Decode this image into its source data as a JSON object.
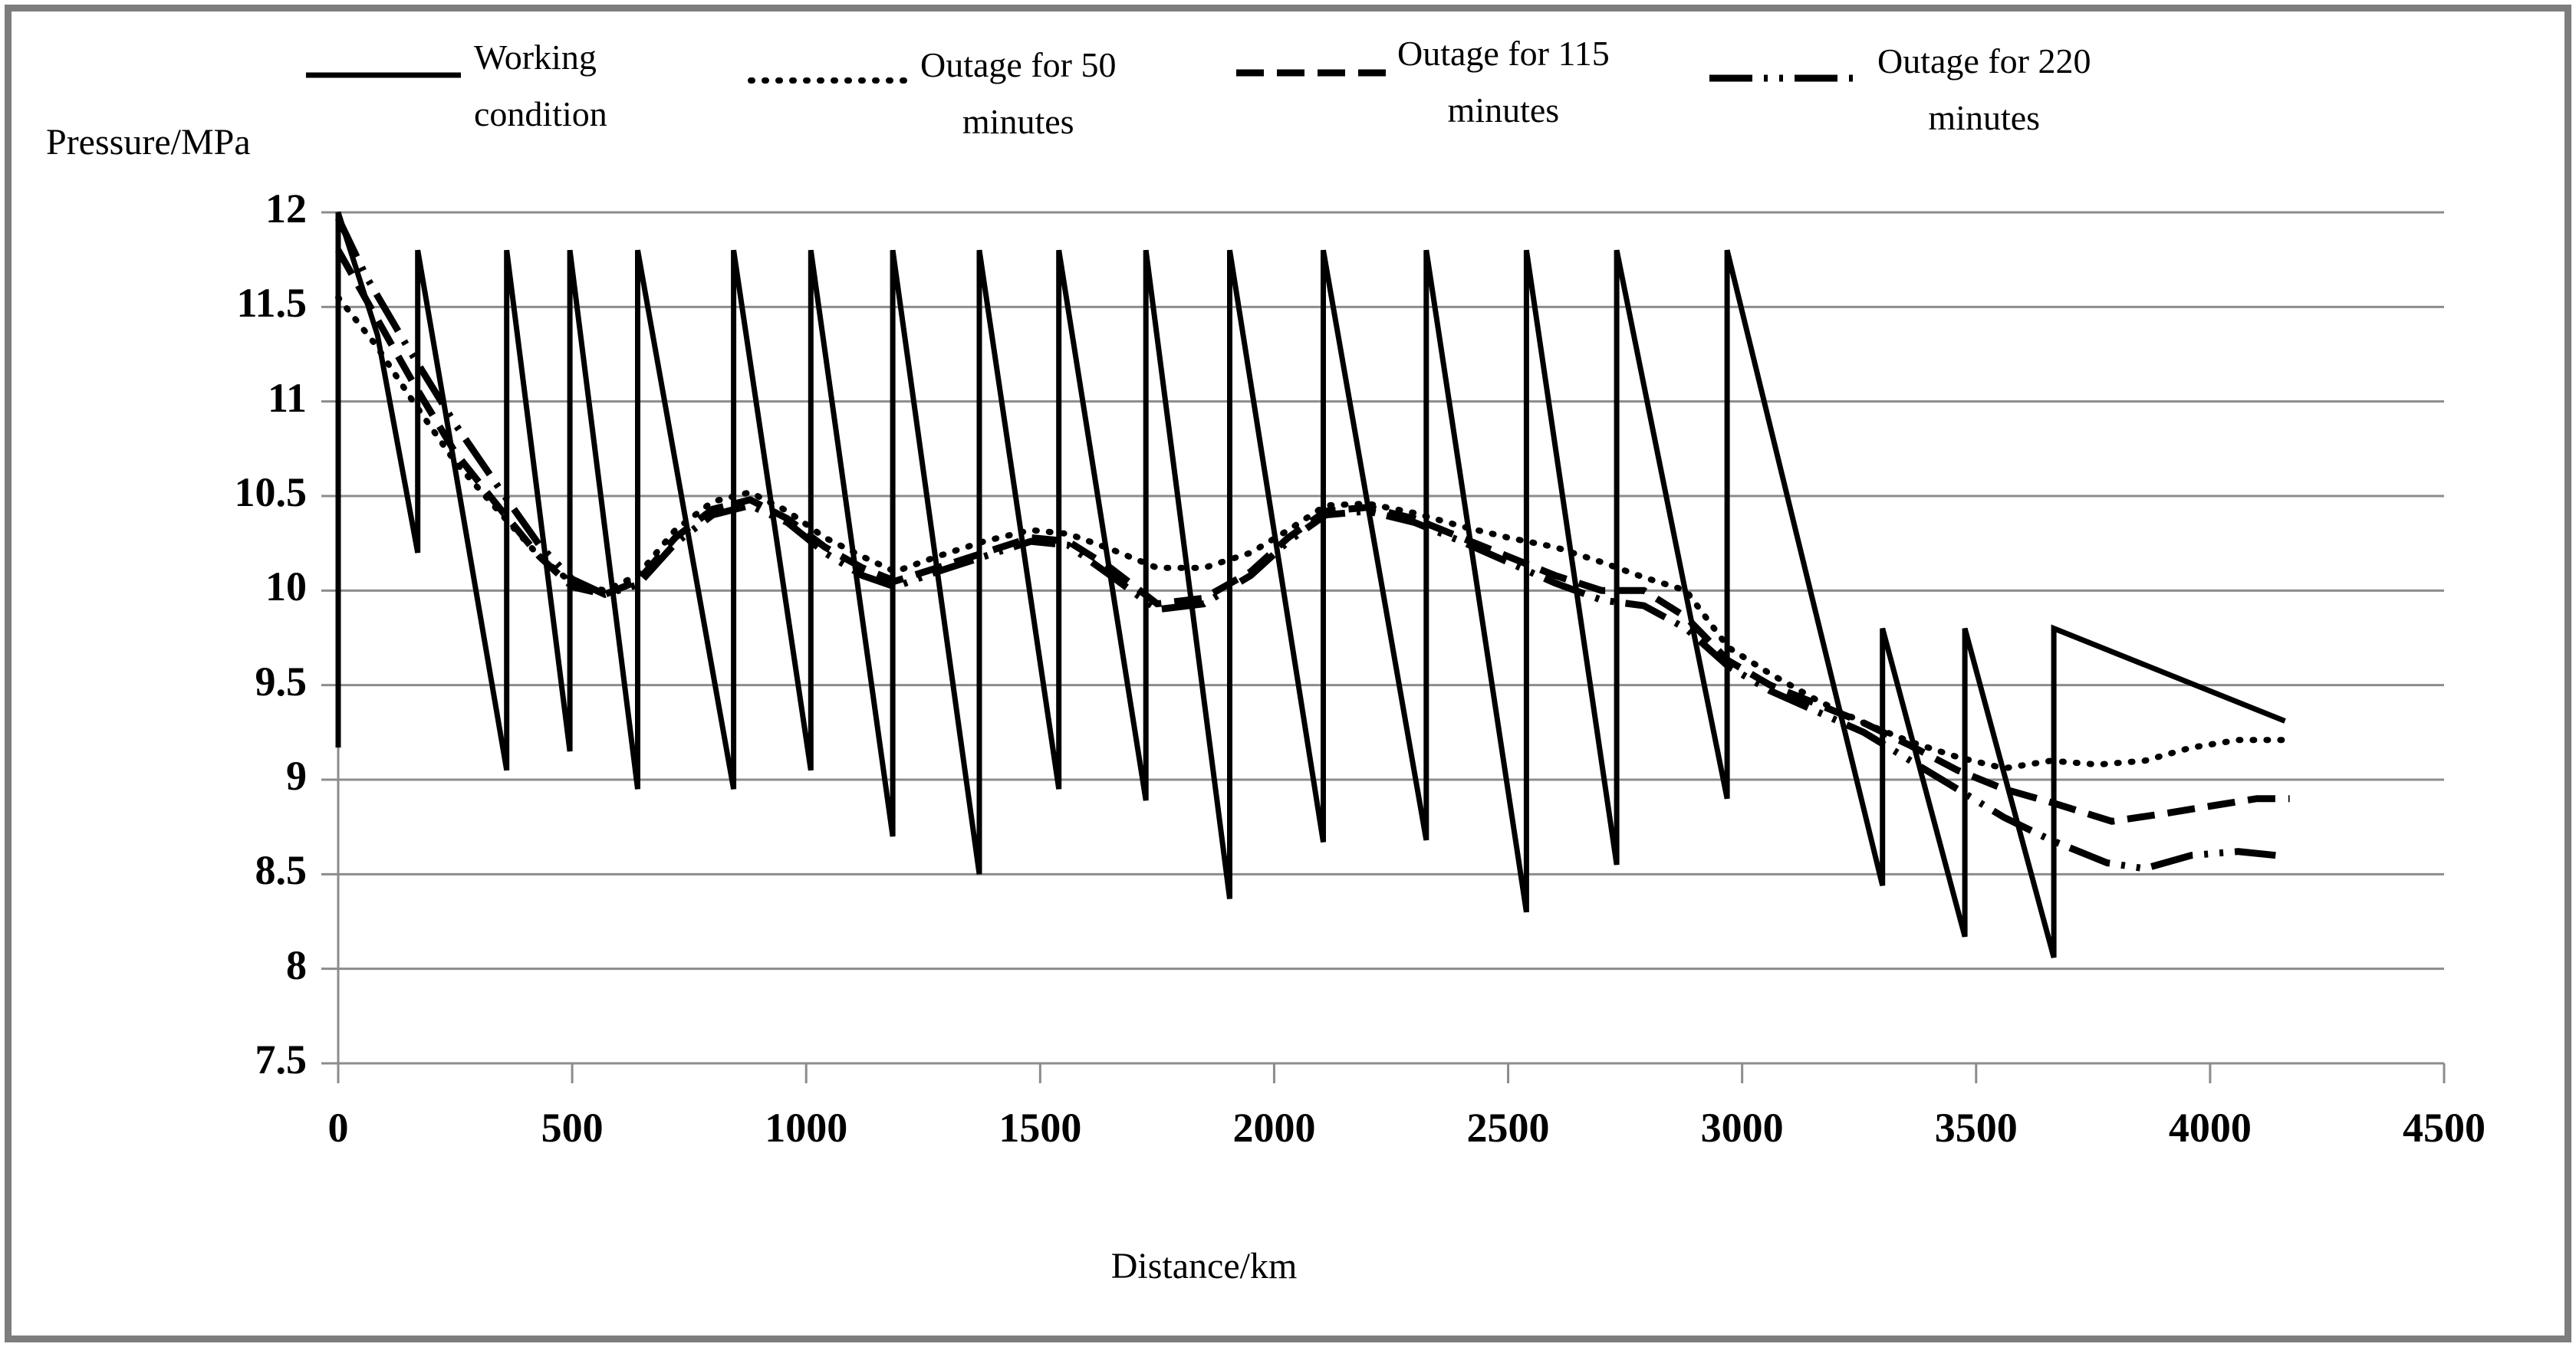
{
  "colors": {
    "series": "#000000",
    "grid": "#8c8c8c",
    "frame_border": "#7d7d7d",
    "background": "#ffffff",
    "text": "#000000"
  },
  "axis_titles": {
    "y": "Pressure/MPa",
    "x": "Distance/km"
  },
  "legend": [
    {
      "label": "Working condition",
      "line1": "Working",
      "line2": "condition",
      "style": "solid",
      "align": "left"
    },
    {
      "label": "Outage for 50 minutes",
      "line1": "Outage for 50",
      "line2": "minutes",
      "style": "dotted",
      "align": "center"
    },
    {
      "label": "Outage for 115 minutes",
      "line1": "Outage for 115",
      "line2": "minutes",
      "style": "dashed",
      "align": "center"
    },
    {
      "label": "Outage for 220 minutes",
      "line1": "Outage for 220",
      "line2": "minutes",
      "style": "dashdot",
      "align": "center"
    }
  ],
  "chart_data": {
    "type": "line",
    "title": "",
    "xlabel": "Distance/km",
    "ylabel": "Pressure/MPa",
    "xlim": [
      0,
      4500
    ],
    "ylim": [
      7.5,
      12
    ],
    "x_ticks": [
      0,
      500,
      1000,
      1500,
      2000,
      2500,
      3000,
      3500,
      4000,
      4500
    ],
    "y_ticks": [
      12,
      11.5,
      11,
      10.5,
      10,
      9.5,
      9,
      8.5,
      8,
      7.5
    ],
    "grid": "horizontal",
    "legend_position": "top",
    "series": [
      {
        "name": "Working condition",
        "style": "solid",
        "points": [
          [
            0,
            9.17
          ],
          [
            0,
            12
          ],
          [
            84,
            11.35
          ],
          [
            170,
            10.2
          ],
          [
            170,
            11.8
          ],
          [
            360,
            9.05
          ],
          [
            360,
            11.8
          ],
          [
            495,
            9.15
          ],
          [
            495,
            11.8
          ],
          [
            640,
            8.95
          ],
          [
            640,
            11.8
          ],
          [
            845,
            8.95
          ],
          [
            845,
            11.8
          ],
          [
            1010,
            9.05
          ],
          [
            1010,
            11.8
          ],
          [
            1185,
            8.7
          ],
          [
            1185,
            11.8
          ],
          [
            1370,
            8.5
          ],
          [
            1370,
            11.8
          ],
          [
            1540,
            8.95
          ],
          [
            1540,
            11.8
          ],
          [
            1726,
            8.89
          ],
          [
            1726,
            11.8
          ],
          [
            1905,
            8.37
          ],
          [
            1905,
            11.8
          ],
          [
            2105,
            8.67
          ],
          [
            2105,
            11.8
          ],
          [
            2325,
            8.68
          ],
          [
            2325,
            11.8
          ],
          [
            2539,
            8.3
          ],
          [
            2539,
            11.8
          ],
          [
            2732,
            8.55
          ],
          [
            2732,
            11.8
          ],
          [
            2968,
            8.9
          ],
          [
            2968,
            11.8
          ],
          [
            3300,
            8.44
          ],
          [
            3300,
            9.8
          ],
          [
            3476,
            8.17
          ],
          [
            3476,
            9.8
          ],
          [
            3666,
            8.06
          ],
          [
            3666,
            9.8
          ],
          [
            4160,
            9.31
          ]
        ]
      },
      {
        "name": "Outage for 50 minutes",
        "style": "dotted",
        "points": [
          [
            0,
            11.55
          ],
          [
            80,
            11.3
          ],
          [
            160,
            11.0
          ],
          [
            250,
            10.68
          ],
          [
            350,
            10.4
          ],
          [
            430,
            10.18
          ],
          [
            500,
            10.04
          ],
          [
            570,
            10.0
          ],
          [
            640,
            10.08
          ],
          [
            720,
            10.32
          ],
          [
            800,
            10.47
          ],
          [
            880,
            10.52
          ],
          [
            960,
            10.42
          ],
          [
            1040,
            10.28
          ],
          [
            1120,
            10.18
          ],
          [
            1190,
            10.1
          ],
          [
            1280,
            10.18
          ],
          [
            1380,
            10.26
          ],
          [
            1480,
            10.32
          ],
          [
            1560,
            10.3
          ],
          [
            1650,
            10.22
          ],
          [
            1750,
            10.12
          ],
          [
            1850,
            10.12
          ],
          [
            1950,
            10.2
          ],
          [
            2030,
            10.32
          ],
          [
            2110,
            10.45
          ],
          [
            2200,
            10.46
          ],
          [
            2300,
            10.41
          ],
          [
            2400,
            10.34
          ],
          [
            2500,
            10.28
          ],
          [
            2600,
            10.23
          ],
          [
            2700,
            10.15
          ],
          [
            2790,
            10.07
          ],
          [
            2880,
            10.0
          ],
          [
            2970,
            9.7
          ],
          [
            3060,
            9.56
          ],
          [
            3160,
            9.42
          ],
          [
            3260,
            9.3
          ],
          [
            3360,
            9.2
          ],
          [
            3460,
            9.12
          ],
          [
            3560,
            9.06
          ],
          [
            3660,
            9.1
          ],
          [
            3760,
            9.08
          ],
          [
            3860,
            9.1
          ],
          [
            3960,
            9.17
          ],
          [
            4060,
            9.21
          ],
          [
            4170,
            9.21
          ]
        ]
      },
      {
        "name": "Outage for 115 minutes",
        "style": "dashed",
        "points": [
          [
            0,
            11.8
          ],
          [
            80,
            11.45
          ],
          [
            160,
            11.1
          ],
          [
            250,
            10.73
          ],
          [
            350,
            10.42
          ],
          [
            430,
            10.18
          ],
          [
            500,
            10.02
          ],
          [
            570,
            9.98
          ],
          [
            640,
            10.05
          ],
          [
            720,
            10.28
          ],
          [
            800,
            10.43
          ],
          [
            880,
            10.48
          ],
          [
            960,
            10.38
          ],
          [
            1040,
            10.23
          ],
          [
            1120,
            10.12
          ],
          [
            1190,
            10.05
          ],
          [
            1280,
            10.12
          ],
          [
            1380,
            10.2
          ],
          [
            1480,
            10.28
          ],
          [
            1560,
            10.26
          ],
          [
            1650,
            10.12
          ],
          [
            1750,
            9.93
          ],
          [
            1850,
            9.96
          ],
          [
            1950,
            10.1
          ],
          [
            2030,
            10.28
          ],
          [
            2110,
            10.42
          ],
          [
            2200,
            10.44
          ],
          [
            2300,
            10.38
          ],
          [
            2400,
            10.28
          ],
          [
            2500,
            10.18
          ],
          [
            2600,
            10.08
          ],
          [
            2700,
            10.0
          ],
          [
            2790,
            10.0
          ],
          [
            2880,
            9.86
          ],
          [
            2970,
            9.63
          ],
          [
            3060,
            9.5
          ],
          [
            3160,
            9.4
          ],
          [
            3260,
            9.3
          ],
          [
            3360,
            9.18
          ],
          [
            3460,
            9.05
          ],
          [
            3560,
            8.95
          ],
          [
            3660,
            8.88
          ],
          [
            3790,
            8.78
          ],
          [
            3900,
            8.82
          ],
          [
            4000,
            8.86
          ],
          [
            4100,
            8.9
          ],
          [
            4170,
            8.9
          ]
        ]
      },
      {
        "name": "Outage for 220 minutes",
        "style": "dashdot",
        "points": [
          [
            0,
            11.97
          ],
          [
            60,
            11.66
          ],
          [
            150,
            11.28
          ],
          [
            250,
            10.88
          ],
          [
            350,
            10.52
          ],
          [
            430,
            10.24
          ],
          [
            500,
            10.06
          ],
          [
            570,
            9.98
          ],
          [
            640,
            10.03
          ],
          [
            720,
            10.25
          ],
          [
            800,
            10.4
          ],
          [
            880,
            10.45
          ],
          [
            960,
            10.36
          ],
          [
            1040,
            10.2
          ],
          [
            1120,
            10.08
          ],
          [
            1190,
            10.02
          ],
          [
            1280,
            10.1
          ],
          [
            1380,
            10.18
          ],
          [
            1480,
            10.26
          ],
          [
            1560,
            10.24
          ],
          [
            1650,
            10.08
          ],
          [
            1750,
            9.9
          ],
          [
            1850,
            9.93
          ],
          [
            1950,
            10.08
          ],
          [
            2030,
            10.26
          ],
          [
            2110,
            10.4
          ],
          [
            2200,
            10.42
          ],
          [
            2300,
            10.36
          ],
          [
            2400,
            10.26
          ],
          [
            2500,
            10.15
          ],
          [
            2600,
            10.04
          ],
          [
            2700,
            9.95
          ],
          [
            2790,
            9.92
          ],
          [
            2880,
            9.8
          ],
          [
            2970,
            9.6
          ],
          [
            3060,
            9.47
          ],
          [
            3160,
            9.36
          ],
          [
            3260,
            9.25
          ],
          [
            3360,
            9.1
          ],
          [
            3460,
            8.95
          ],
          [
            3560,
            8.8
          ],
          [
            3660,
            8.68
          ],
          [
            3780,
            8.56
          ],
          [
            3860,
            8.53
          ],
          [
            3960,
            8.6
          ],
          [
            4060,
            8.62
          ],
          [
            4140,
            8.6
          ]
        ]
      }
    ]
  }
}
